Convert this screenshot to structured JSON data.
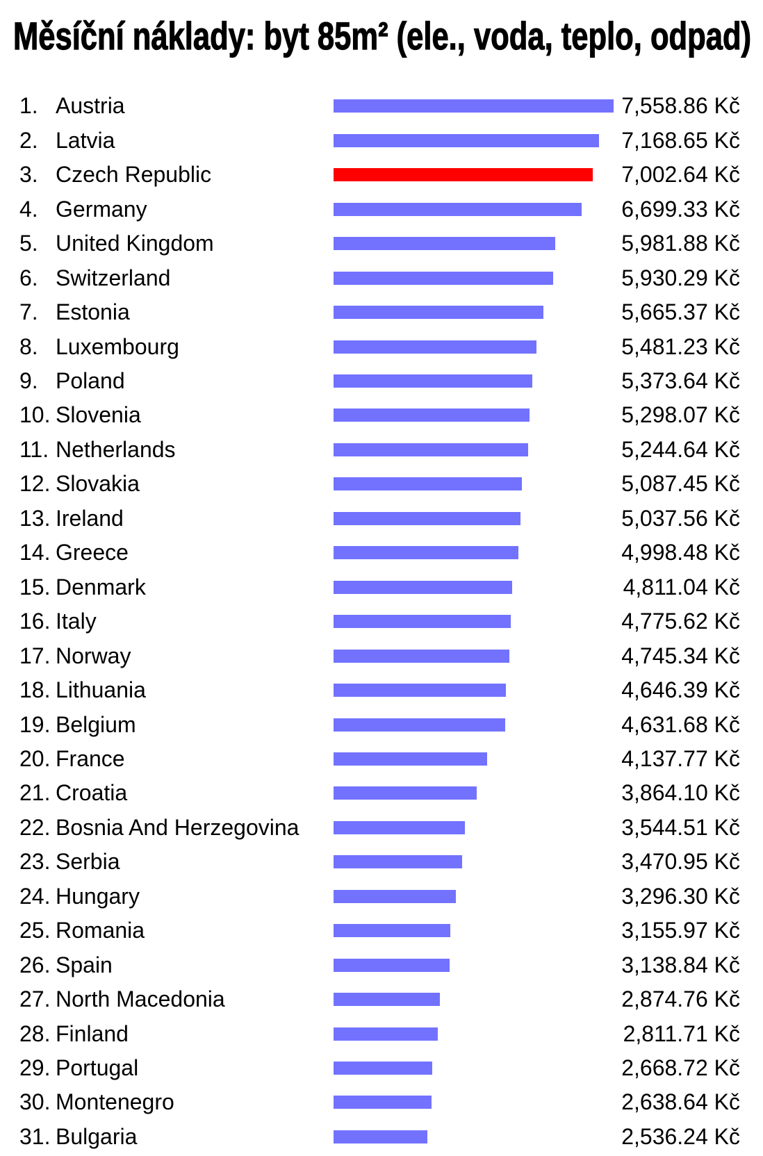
{
  "colors": {
    "text": "#000000",
    "background": "#ffffff"
  },
  "chart_data": {
    "type": "bar",
    "title": "Měsíční náklady: byt 85m² (ele., voda, teplo, odpad)",
    "xlim": [
      0,
      7558.86
    ],
    "grid": false,
    "ranks": [
      "1.",
      "2.",
      "3.",
      "4.",
      "5.",
      "6.",
      "7.",
      "8.",
      "9.",
      "10.",
      "11.",
      "12.",
      "13.",
      "14.",
      "15.",
      "16.",
      "17.",
      "18.",
      "19.",
      "20.",
      "21.",
      "22.",
      "23.",
      "24.",
      "25.",
      "26.",
      "27.",
      "28.",
      "29.",
      "30.",
      "31."
    ],
    "categories": [
      "Austria",
      "Latvia",
      "Czech Republic",
      "Germany",
      "United Kingdom",
      "Switzerland",
      "Estonia",
      "Luxembourg",
      "Poland",
      "Slovenia",
      "Netherlands",
      "Slovakia",
      "Ireland",
      "Greece",
      "Denmark",
      "Italy",
      "Norway",
      "Lithuania",
      "Belgium",
      "France",
      "Croatia",
      "Bosnia And Herzegovina",
      "Serbia",
      "Hungary",
      "Romania",
      "Spain",
      "North Macedonia",
      "Finland",
      "Portugal",
      "Montenegro",
      "Bulgaria"
    ],
    "values": [
      7558.86,
      7168.65,
      7002.64,
      6699.33,
      5981.88,
      5930.29,
      5665.37,
      5481.23,
      5373.64,
      5298.07,
      5244.64,
      5087.45,
      5037.56,
      4998.48,
      4811.04,
      4775.62,
      4745.34,
      4646.39,
      4631.68,
      4137.77,
      3864.1,
      3544.51,
      3470.95,
      3296.3,
      3155.97,
      3138.84,
      2874.76,
      2811.71,
      2668.72,
      2638.64,
      2536.24
    ],
    "value_labels": [
      "7,558.86 Kč",
      "7,168.65 Kč",
      "7,002.64 Kč",
      "6,699.33 Kč",
      "5,981.88 Kč",
      "5,930.29 Kč",
      "5,665.37 Kč",
      "5,481.23 Kč",
      "5,373.64 Kč",
      "5,298.07 Kč",
      "5,244.64 Kč",
      "5,087.45 Kč",
      "5,037.56 Kč",
      "4,998.48 Kč",
      "4,811.04 Kč",
      "4,775.62 Kč",
      "4,745.34 Kč",
      "4,646.39 Kč",
      "4,631.68 Kč",
      "4,137.77 Kč",
      "3,864.10 Kč",
      "3,544.51 Kč",
      "3,470.95 Kč",
      "3,296.30 Kč",
      "3,155.97 Kč",
      "3,138.84 Kč",
      "2,874.76 Kč",
      "2,811.71 Kč",
      "2,668.72 Kč",
      "2,638.64 Kč",
      "2,536.24 Kč"
    ],
    "bar_colors": [
      "#7272ff",
      "#7272ff",
      "#ff0000",
      "#7272ff",
      "#7272ff",
      "#7272ff",
      "#7272ff",
      "#7272ff",
      "#7272ff",
      "#7272ff",
      "#7272ff",
      "#7272ff",
      "#7272ff",
      "#7272ff",
      "#7272ff",
      "#7272ff",
      "#7272ff",
      "#7272ff",
      "#7272ff",
      "#7272ff",
      "#7272ff",
      "#7272ff",
      "#7272ff",
      "#7272ff",
      "#7272ff",
      "#7272ff",
      "#7272ff",
      "#7272ff",
      "#7272ff",
      "#7272ff",
      "#7272ff"
    ]
  }
}
